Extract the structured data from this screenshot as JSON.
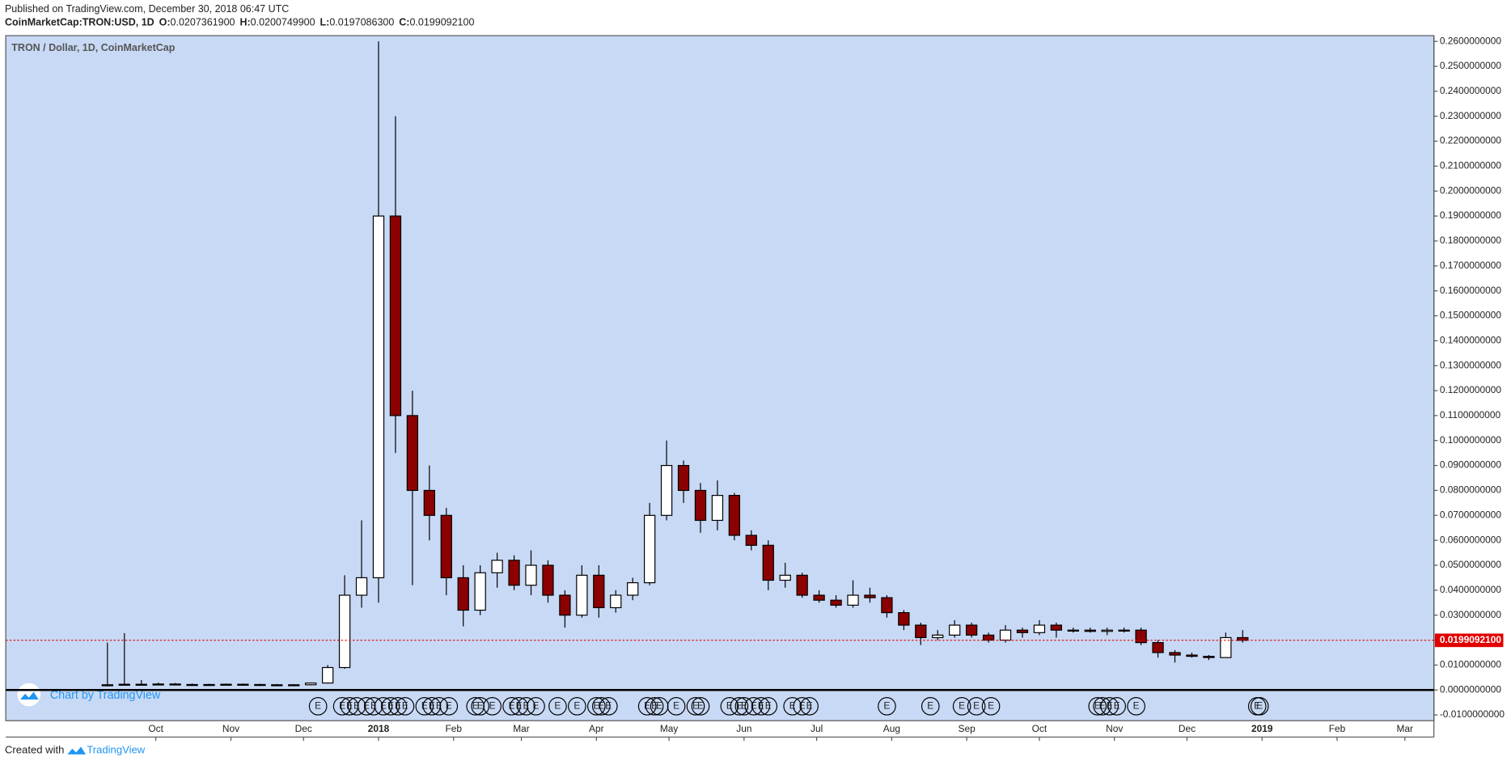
{
  "header": {
    "published": "Published on TradingView.com, December 30, 2018 06:47 UTC",
    "symbol": "CoinMarketCap:TRON:USD, 1D",
    "ohlc": [
      {
        "label": "O:",
        "text": "0.0207361900"
      },
      {
        "label": "H:",
        "text": "0.0200749900"
      },
      {
        "label": "L:",
        "text": "0.0197086300"
      },
      {
        "label": "C:",
        "text": "0.0199092100"
      }
    ]
  },
  "chart_data": {
    "type": "candlestick",
    "title": "TRON / Dollar, 1D, CoinMarketCap",
    "x": [
      "2017-09-11",
      "2017-09-18",
      "2017-09-25",
      "2017-10-02",
      "2017-10-09",
      "2017-10-16",
      "2017-10-23",
      "2017-10-30",
      "2017-11-06",
      "2017-11-13",
      "2017-11-20",
      "2017-11-27",
      "2017-12-04",
      "2017-12-11",
      "2017-12-18",
      "2017-12-25",
      "2018-01-01",
      "2018-01-08",
      "2018-01-15",
      "2018-01-22",
      "2018-01-29",
      "2018-02-05",
      "2018-02-12",
      "2018-02-19",
      "2018-02-26",
      "2018-03-05",
      "2018-03-12",
      "2018-03-19",
      "2018-03-26",
      "2018-04-02",
      "2018-04-09",
      "2018-04-16",
      "2018-04-23",
      "2018-04-30",
      "2018-05-07",
      "2018-05-14",
      "2018-05-21",
      "2018-05-28",
      "2018-06-04",
      "2018-06-11",
      "2018-06-18",
      "2018-06-25",
      "2018-07-02",
      "2018-07-09",
      "2018-07-16",
      "2018-07-23",
      "2018-07-30",
      "2018-08-06",
      "2018-08-13",
      "2018-08-20",
      "2018-08-27",
      "2018-09-03",
      "2018-09-10",
      "2018-09-17",
      "2018-09-24",
      "2018-10-01",
      "2018-10-08",
      "2018-10-15",
      "2018-10-22",
      "2018-10-29",
      "2018-11-05",
      "2018-11-12",
      "2018-11-19",
      "2018-11-26",
      "2018-12-03",
      "2018-12-10",
      "2018-12-17",
      "2018-12-24"
    ],
    "open": [
      0.0017,
      0.0021,
      0.0023,
      0.0022,
      0.0024,
      0.0022,
      0.0021,
      0.0022,
      0.0023,
      0.0022,
      0.0021,
      0.002,
      0.0021,
      0.0028,
      0.009,
      0.038,
      0.045,
      0.19,
      0.11,
      0.08,
      0.07,
      0.045,
      0.032,
      0.047,
      0.052,
      0.042,
      0.05,
      0.038,
      0.03,
      0.046,
      0.033,
      0.038,
      0.043,
      0.07,
      0.09,
      0.08,
      0.068,
      0.078,
      0.062,
      0.058,
      0.044,
      0.046,
      0.038,
      0.036,
      0.034,
      0.038,
      0.037,
      0.031,
      0.026,
      0.021,
      0.022,
      0.026,
      0.022,
      0.02,
      0.024,
      0.023,
      0.026,
      0.024,
      0.024,
      0.0235,
      0.024,
      0.024,
      0.019,
      0.015,
      0.014,
      0.0135,
      0.013,
      0.021
    ],
    "high": [
      0.019,
      0.0228,
      0.004,
      0.003,
      0.0028,
      0.0026,
      0.0025,
      0.0026,
      0.0026,
      0.0025,
      0.0024,
      0.0023,
      0.003,
      0.01,
      0.046,
      0.068,
      0.26,
      0.23,
      0.12,
      0.09,
      0.073,
      0.05,
      0.05,
      0.055,
      0.054,
      0.056,
      0.052,
      0.04,
      0.05,
      0.05,
      0.04,
      0.045,
      0.075,
      0.1,
      0.092,
      0.083,
      0.084,
      0.079,
      0.064,
      0.06,
      0.051,
      0.047,
      0.04,
      0.038,
      0.044,
      0.041,
      0.038,
      0.032,
      0.027,
      0.024,
      0.028,
      0.027,
      0.023,
      0.026,
      0.025,
      0.028,
      0.027,
      0.025,
      0.025,
      0.025,
      0.025,
      0.025,
      0.02,
      0.016,
      0.015,
      0.014,
      0.023,
      0.024
    ],
    "low": [
      0.0015,
      0.0019,
      0.0019,
      0.002,
      0.0021,
      0.002,
      0.0019,
      0.002,
      0.002,
      0.002,
      0.0019,
      0.0018,
      0.0019,
      0.0026,
      0.0085,
      0.033,
      0.035,
      0.095,
      0.042,
      0.06,
      0.038,
      0.0255,
      0.03,
      0.041,
      0.04,
      0.038,
      0.035,
      0.025,
      0.029,
      0.029,
      0.031,
      0.036,
      0.042,
      0.068,
      0.075,
      0.063,
      0.064,
      0.06,
      0.056,
      0.04,
      0.041,
      0.037,
      0.035,
      0.033,
      0.033,
      0.035,
      0.029,
      0.024,
      0.018,
      0.02,
      0.021,
      0.021,
      0.019,
      0.019,
      0.021,
      0.022,
      0.021,
      0.023,
      0.023,
      0.022,
      0.023,
      0.018,
      0.013,
      0.011,
      0.013,
      0.012,
      0.013,
      0.019
    ],
    "close": [
      0.0021,
      0.0023,
      0.0022,
      0.0024,
      0.0022,
      0.0021,
      0.0022,
      0.0023,
      0.0022,
      0.0021,
      0.002,
      0.0021,
      0.0028,
      0.009,
      0.038,
      0.045,
      0.19,
      0.11,
      0.08,
      0.07,
      0.045,
      0.032,
      0.047,
      0.052,
      0.042,
      0.05,
      0.038,
      0.03,
      0.046,
      0.033,
      0.038,
      0.043,
      0.07,
      0.09,
      0.08,
      0.068,
      0.078,
      0.062,
      0.058,
      0.044,
      0.046,
      0.038,
      0.036,
      0.034,
      0.038,
      0.037,
      0.031,
      0.026,
      0.021,
      0.022,
      0.026,
      0.022,
      0.02,
      0.024,
      0.023,
      0.026,
      0.024,
      0.024,
      0.0235,
      0.024,
      0.024,
      0.019,
      0.015,
      0.014,
      0.0135,
      0.013,
      0.021,
      0.01990921
    ],
    "up_color": "#ffffff",
    "down_color": "#8b0000",
    "wick_color": "#000000",
    "background": "#c8d9f5",
    "grid": false,
    "xlim": [
      "2017-07-31",
      "2019-03-13"
    ],
    "xticks": [
      {
        "value": "2017-10-01",
        "label": "Oct"
      },
      {
        "value": "2017-11-01",
        "label": "Nov"
      },
      {
        "value": "2017-12-01",
        "label": "Dec"
      },
      {
        "value": "2018-01-01",
        "label": "2018"
      },
      {
        "value": "2018-02-01",
        "label": "Feb"
      },
      {
        "value": "2018-03-01",
        "label": "Mar"
      },
      {
        "value": "2018-04-01",
        "label": "Apr"
      },
      {
        "value": "2018-05-01",
        "label": "May"
      },
      {
        "value": "2018-06-01",
        "label": "Jun"
      },
      {
        "value": "2018-07-01",
        "label": "Jul"
      },
      {
        "value": "2018-08-01",
        "label": "Aug"
      },
      {
        "value": "2018-09-01",
        "label": "Sep"
      },
      {
        "value": "2018-10-01",
        "label": "Oct"
      },
      {
        "value": "2018-11-01",
        "label": "Nov"
      },
      {
        "value": "2018-12-01",
        "label": "Dec"
      },
      {
        "value": "2019-01-01",
        "label": "2019"
      },
      {
        "value": "2019-02-01",
        "label": "Feb"
      },
      {
        "value": "2019-03-01",
        "label": "Mar"
      }
    ],
    "ylim": [
      -0.0123,
      0.2623
    ],
    "yticks": [
      {
        "value": -0.01,
        "label": "-0.0100000000"
      },
      {
        "value": 0,
        "label": "0.0000000000"
      },
      {
        "value": 0.01,
        "label": "0.0100000000"
      },
      {
        "value": 0.02,
        "label": "0.0200000000"
      },
      {
        "value": 0.03,
        "label": "0.0300000000"
      },
      {
        "value": 0.04,
        "label": "0.0400000000"
      },
      {
        "value": 0.05,
        "label": "0.0500000000"
      },
      {
        "value": 0.06,
        "label": "0.0600000000"
      },
      {
        "value": 0.07,
        "label": "0.0700000000"
      },
      {
        "value": 0.08,
        "label": "0.0800000000"
      },
      {
        "value": 0.09,
        "label": "0.0900000000"
      },
      {
        "value": 0.1,
        "label": "0.1000000000"
      },
      {
        "value": 0.11,
        "label": "0.1100000000"
      },
      {
        "value": 0.12,
        "label": "0.1200000000"
      },
      {
        "value": 0.13,
        "label": "0.1300000000"
      },
      {
        "value": 0.14,
        "label": "0.1400000000"
      },
      {
        "value": 0.15,
        "label": "0.1500000000"
      },
      {
        "value": 0.16,
        "label": "0.1600000000"
      },
      {
        "value": 0.17,
        "label": "0.1700000000"
      },
      {
        "value": 0.18,
        "label": "0.1800000000"
      },
      {
        "value": 0.19,
        "label": "0.1900000000"
      },
      {
        "value": 0.2,
        "label": "0.2000000000"
      },
      {
        "value": 0.21,
        "label": "0.2100000000"
      },
      {
        "value": 0.22,
        "label": "0.2200000000"
      },
      {
        "value": 0.23,
        "label": "0.2300000000"
      },
      {
        "value": 0.24,
        "label": "0.2400000000"
      },
      {
        "value": 0.25,
        "label": "0.2500000000"
      },
      {
        "value": 0.26,
        "label": "0.2600000000"
      }
    ],
    "last_price": {
      "value": 0.01990921,
      "label": "0.0199092100",
      "color": "#e00000"
    },
    "event_label": "E",
    "events": [
      "2017-12-07",
      "2017-12-17",
      "2017-12-20",
      "2017-12-23",
      "2017-12-27",
      "2017-12-30",
      "2018-01-03",
      "2018-01-06",
      "2018-01-09",
      "2018-01-12",
      "2018-01-20",
      "2018-01-23",
      "2018-01-26",
      "2018-01-30",
      "2018-02-10",
      "2018-02-12",
      "2018-02-17",
      "2018-02-25",
      "2018-02-28",
      "2018-03-03",
      "2018-03-07",
      "2018-03-16",
      "2018-03-24",
      "2018-04-01",
      "2018-04-03",
      "2018-04-06",
      "2018-04-22",
      "2018-04-25",
      "2018-04-27",
      "2018-05-04",
      "2018-05-12",
      "2018-05-14",
      "2018-05-26",
      "2018-05-30",
      "2018-06-01",
      "2018-06-05",
      "2018-06-08",
      "2018-06-11",
      "2018-06-21",
      "2018-06-25",
      "2018-06-28",
      "2018-07-30",
      "2018-08-17",
      "2018-08-30",
      "2018-09-05",
      "2018-09-11",
      "2018-10-25",
      "2018-10-27",
      "2018-10-30",
      "2018-11-02",
      "2018-11-10",
      "2018-12-30",
      "2018-12-31"
    ]
  },
  "branding": {
    "chart_by": "Chart by TradingView",
    "created_with": "Created with",
    "tradingview": "TradingView"
  }
}
